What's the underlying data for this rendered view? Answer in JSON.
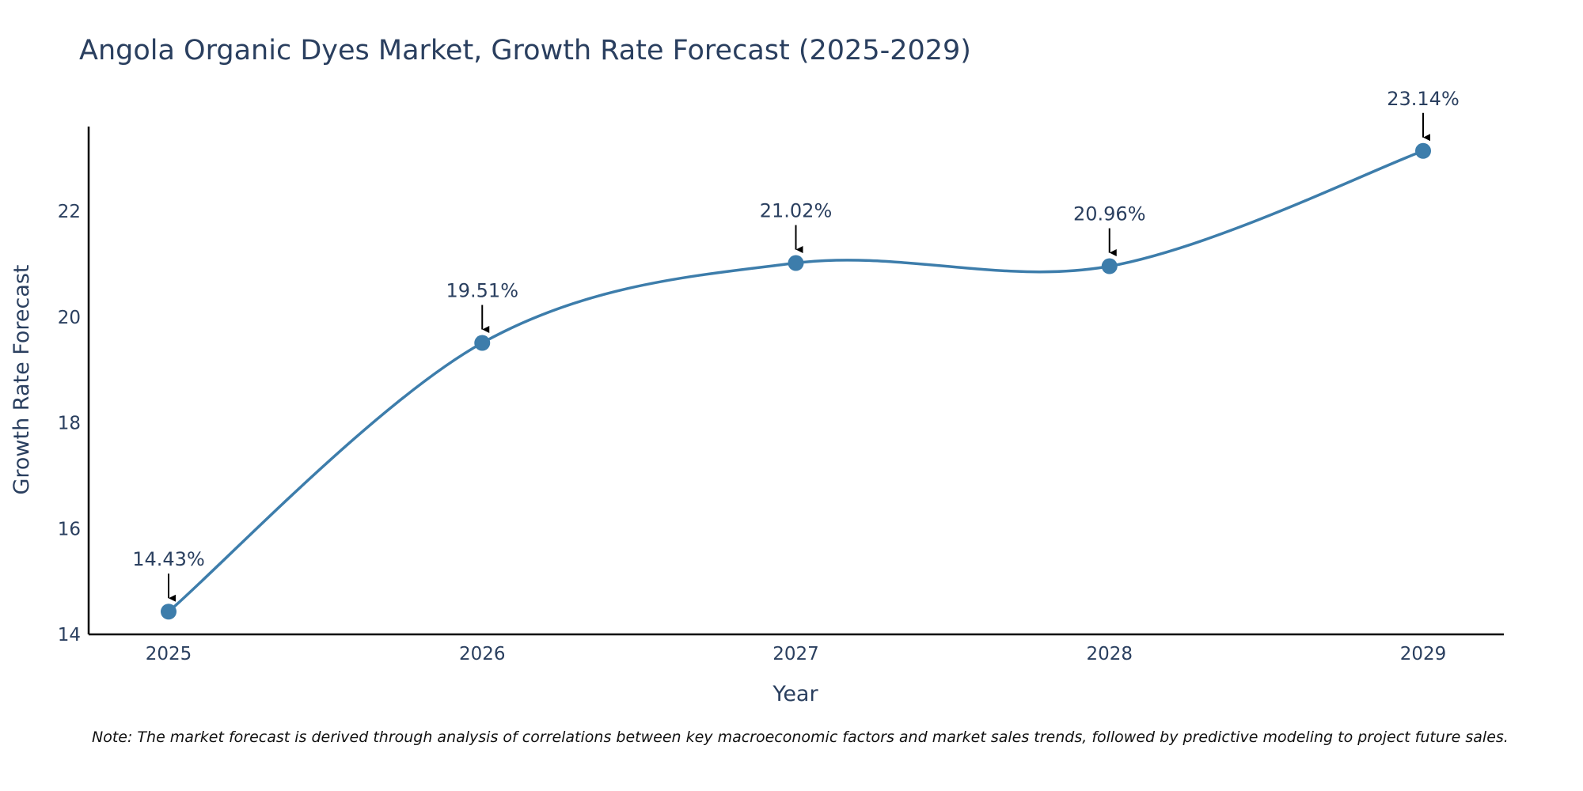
{
  "chart_data": {
    "type": "line",
    "title": "Angola Organic Dyes Market, Growth Rate Forecast (2025-2029)",
    "xlabel": "Year",
    "ylabel": "Growth Rate Forecast",
    "categories": [
      "2025",
      "2026",
      "2027",
      "2028",
      "2029"
    ],
    "series": [
      {
        "name": "Growth Rate Forecast",
        "values": [
          14.43,
          19.51,
          21.02,
          20.96,
          23.14
        ],
        "labels": [
          "14.43%",
          "19.51%",
          "21.02%",
          "20.96%",
          "23.14%"
        ]
      }
    ],
    "ylim": [
      14,
      23.6
    ],
    "yticks": [
      14,
      16,
      18,
      20,
      22
    ],
    "ytick_labels": [
      "14",
      "16",
      "18",
      "20",
      "22"
    ],
    "line_shape": "spline",
    "grid": false,
    "colors": {
      "line": "#3d7dab",
      "marker": "#3d7dab",
      "arrow": "#000000",
      "axis": "#000000",
      "text": "#2a3f5f"
    }
  },
  "note": "Note: The market forecast is derived through analysis of correlations between key macroeconomic factors and market sales trends, followed by predictive modeling to project future sales."
}
